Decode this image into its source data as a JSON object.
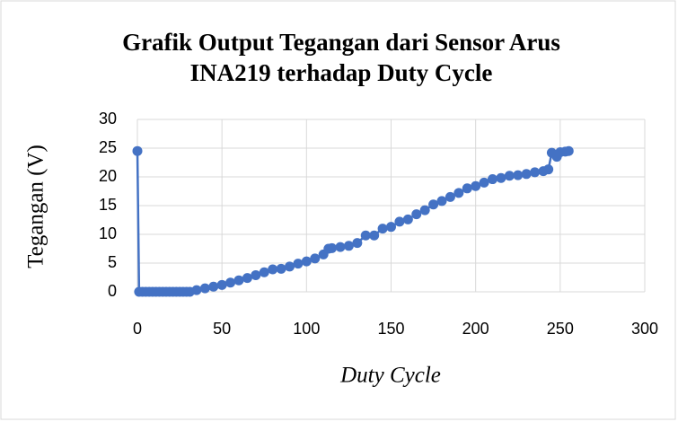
{
  "chart_data": {
    "type": "scatter",
    "title": "Grafik Output Tegangan dari Sensor Arus INA219 terhadap Duty Cycle",
    "x_label": "Duty Cycle",
    "y_label": "Tegangan (V)",
    "x": [
      0,
      1,
      3,
      5,
      7,
      9,
      11,
      13,
      15,
      17,
      19,
      21,
      23,
      25,
      27,
      29,
      31,
      35,
      40,
      45,
      50,
      55,
      60,
      65,
      70,
      75,
      80,
      85,
      90,
      95,
      100,
      105,
      110,
      113,
      115,
      120,
      125,
      130,
      135,
      140,
      145,
      150,
      155,
      160,
      165,
      170,
      175,
      180,
      185,
      190,
      195,
      200,
      205,
      210,
      215,
      220,
      225,
      230,
      235,
      240,
      243,
      245,
      248,
      250,
      253,
      255
    ],
    "series": [
      {
        "name": "Tegangan",
        "color": "#4472c4",
        "values": [
          24.5,
          0,
          0,
          0,
          0,
          0,
          0,
          0,
          0,
          0,
          0,
          0,
          0,
          0,
          0,
          0,
          0,
          0.3,
          0.6,
          0.9,
          1.2,
          1.6,
          2.0,
          2.4,
          2.9,
          3.4,
          3.9,
          4.0,
          4.4,
          4.9,
          5.3,
          5.8,
          6.5,
          7.5,
          7.6,
          7.8,
          8.0,
          8.5,
          9.8,
          9.8,
          11,
          11.3,
          12.2,
          12.6,
          13.5,
          14.2,
          15.2,
          15.8,
          16.5,
          17.2,
          18,
          18.4,
          19,
          19.6,
          19.8,
          20.2,
          20.3,
          20.5,
          20.8,
          21,
          21.3,
          24.2,
          23.5,
          24.3,
          24.4,
          24.5
        ]
      }
    ],
    "xlim": [
      0,
      300
    ],
    "xticks": [
      0,
      50,
      100,
      150,
      200,
      250,
      300
    ],
    "ylim": [
      0,
      30
    ],
    "yticks": [
      0,
      5,
      10,
      15,
      20,
      25,
      30
    ],
    "grid": true
  }
}
